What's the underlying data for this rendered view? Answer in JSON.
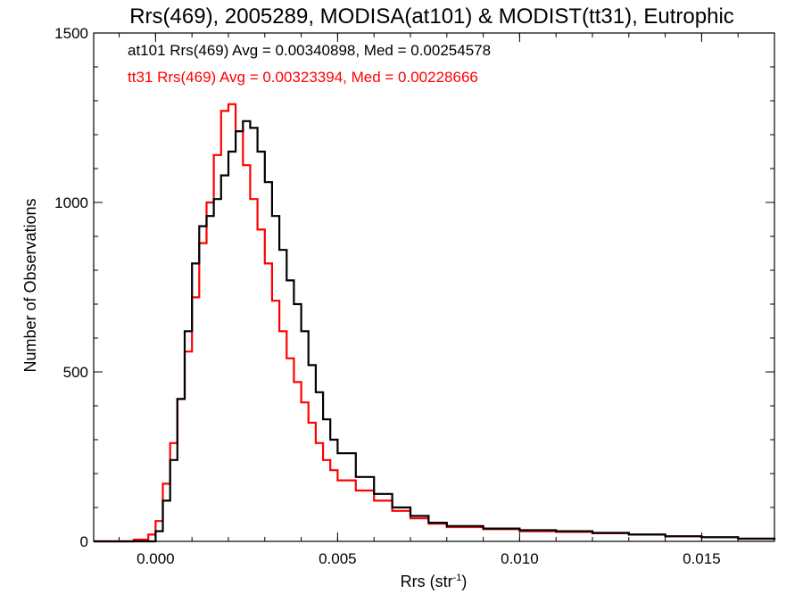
{
  "chart_data": {
    "type": "line",
    "title": "Rrs(469), 2005289, MODISA(at101) & MODIST(tt31), Eutrophic",
    "xlabel_main": "Rrs (str",
    "xlabel_sup": "-1",
    "xlabel_close": ")",
    "ylabel": "Number of Observations",
    "xlim": [
      -0.0017,
      0.017
    ],
    "ylim": [
      0,
      1500
    ],
    "x_ticks": [
      0.0,
      0.005,
      0.01,
      0.015
    ],
    "x_tick_labels": [
      "0.000",
      "0.005",
      "0.010",
      "0.015"
    ],
    "y_ticks": [
      0,
      500,
      1000,
      1500
    ],
    "y_tick_labels": [
      "0",
      "500",
      "1000",
      "1500"
    ],
    "grid": false,
    "legend_placement": "top-left",
    "series": [
      {
        "name": "at101",
        "color": "#000000",
        "legend_text": "at101 Rrs(469) Avg = 0.00340898, Med = 0.00254578",
        "x": [
          -0.0017,
          -0.0005,
          0.0,
          0.0002,
          0.0004,
          0.0006,
          0.0008,
          0.001,
          0.0012,
          0.0014,
          0.0016,
          0.0018,
          0.002,
          0.0022,
          0.0024,
          0.0026,
          0.0028,
          0.003,
          0.0032,
          0.0034,
          0.0036,
          0.0038,
          0.004,
          0.0042,
          0.0044,
          0.0046,
          0.0048,
          0.005,
          0.0055,
          0.006,
          0.0065,
          0.007,
          0.0075,
          0.008,
          0.009,
          0.01,
          0.011,
          0.012,
          0.013,
          0.014,
          0.015,
          0.016,
          0.017
        ],
        "y": [
          0,
          0,
          30,
          120,
          240,
          420,
          620,
          820,
          930,
          960,
          1010,
          1080,
          1150,
          1210,
          1240,
          1220,
          1150,
          1060,
          960,
          860,
          770,
          700,
          620,
          520,
          440,
          360,
          300,
          260,
          190,
          140,
          100,
          75,
          55,
          45,
          38,
          33,
          30,
          25,
          20,
          15,
          12,
          8,
          5
        ]
      },
      {
        "name": "tt31",
        "color": "#ff0000",
        "legend_text": "tt31 Rrs(469) Avg = 0.00323394, Med = 0.00228666",
        "x": [
          -0.0017,
          -0.001,
          -0.0006,
          -0.0002,
          0.0,
          0.0002,
          0.0004,
          0.0006,
          0.0008,
          0.001,
          0.0012,
          0.0014,
          0.0016,
          0.0018,
          0.002,
          0.0022,
          0.0024,
          0.0026,
          0.0028,
          0.003,
          0.0032,
          0.0034,
          0.0036,
          0.0038,
          0.004,
          0.0042,
          0.0044,
          0.0046,
          0.0048,
          0.005,
          0.0055,
          0.006,
          0.0065,
          0.007,
          0.0075,
          0.008,
          0.009,
          0.01,
          0.011,
          0.012,
          0.013,
          0.014,
          0.015,
          0.016,
          0.017
        ],
        "y": [
          0,
          0,
          5,
          20,
          60,
          170,
          290,
          420,
          560,
          720,
          880,
          1000,
          1140,
          1270,
          1290,
          1210,
          1110,
          1010,
          920,
          820,
          710,
          620,
          540,
          470,
          410,
          350,
          290,
          240,
          210,
          180,
          150,
          120,
          90,
          68,
          52,
          42,
          36,
          30,
          28,
          24,
          20,
          15,
          12,
          8,
          5
        ]
      }
    ]
  }
}
